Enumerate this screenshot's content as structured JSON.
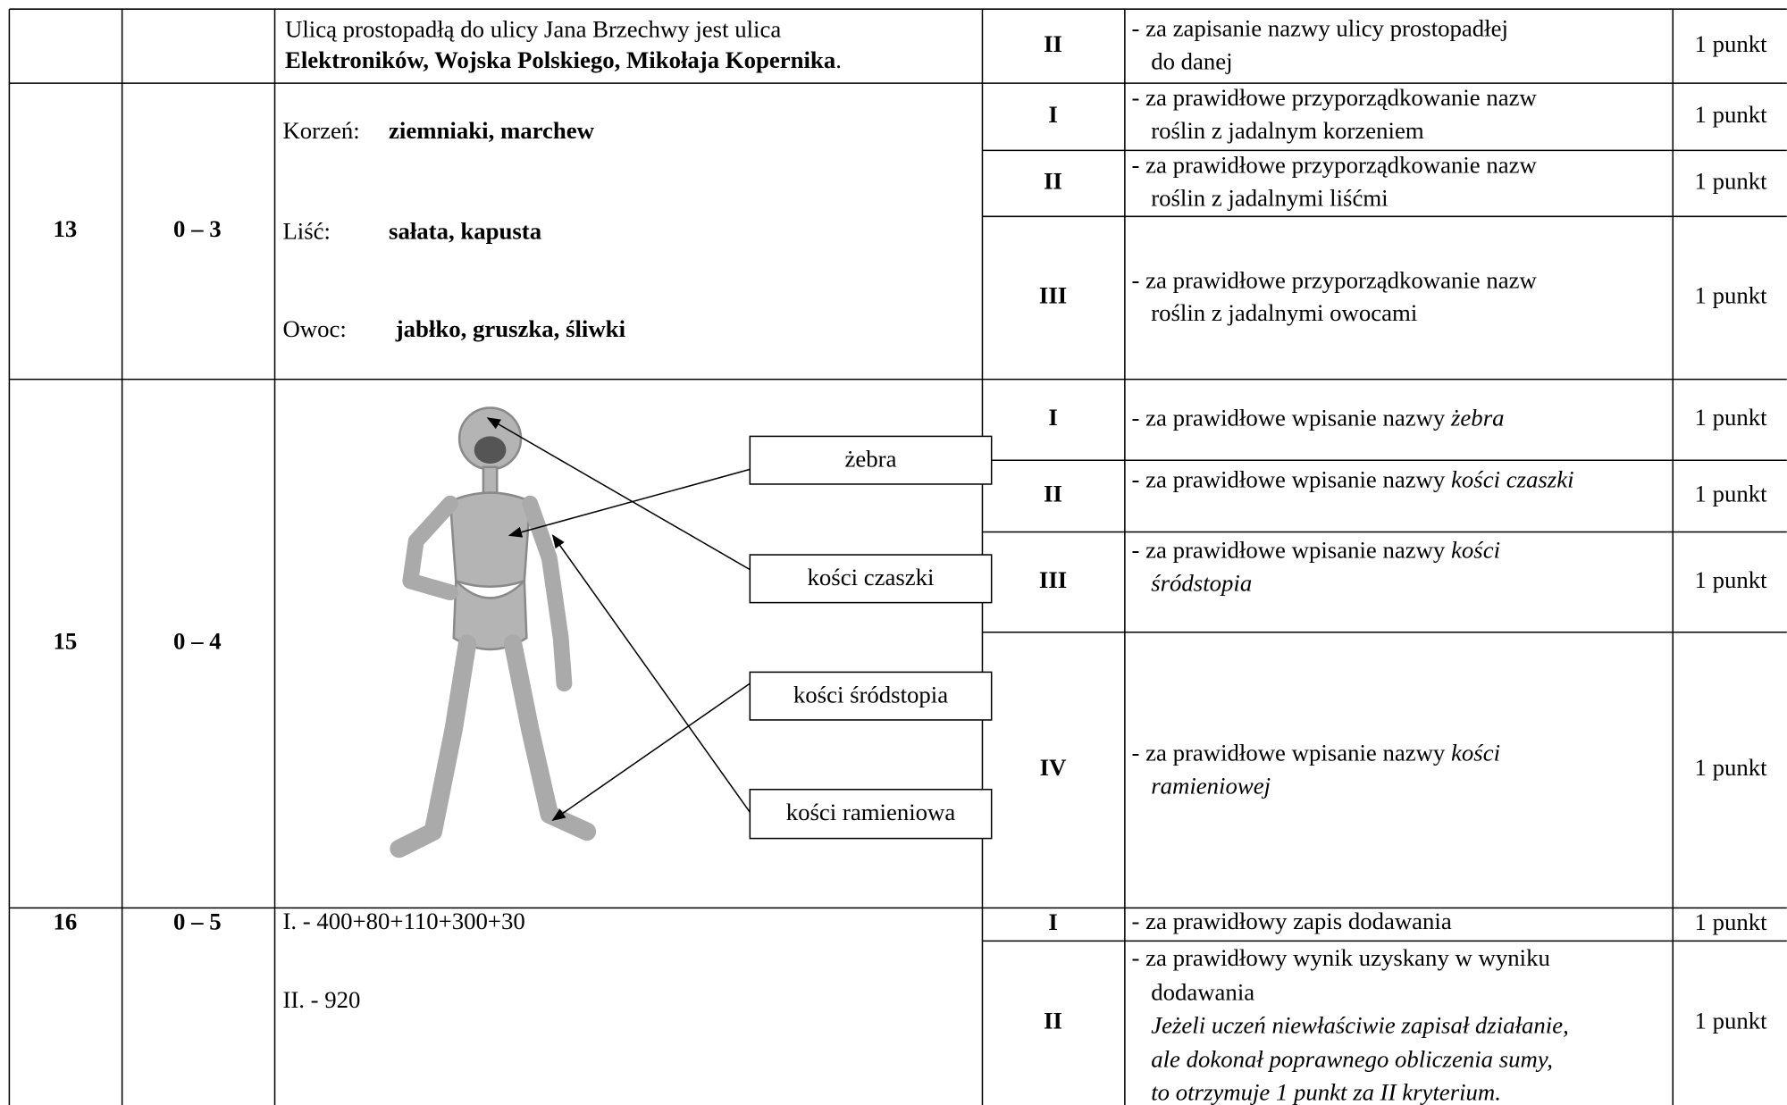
{
  "rows": [
    {
      "answer": [
        [
          {
            "text": "Ulicą prostopadłą do ulicy Jana Brzechwy jest ulica"
          }
        ],
        [
          {
            "text": "Elektroników, Wojska Polskiego, Mikołaja Kopernika",
            "style": "bold"
          },
          {
            "text": "."
          }
        ]
      ],
      "criteria": [
        {
          "level": "II",
          "lines": [
            [
              {
                "text": "- za zapisanie nazwy ulicy prostopadłej"
              }
            ],
            [
              {
                "text": "do danej"
              }
            ]
          ],
          "points": "1 punkt"
        }
      ]
    },
    {
      "task": "13",
      "range": "0 – 3",
      "answer": [
        [
          {
            "text": "Korzeń:"
          },
          {
            "text": "ziemniaki, marchew",
            "style": "bold"
          }
        ],
        [
          {
            "text": "Liść:"
          },
          {
            "text": "sałata, kapusta",
            "style": "bold"
          }
        ],
        [
          {
            "text": "Owoc:"
          },
          {
            "text": "jabłko, gruszka, śliwki",
            "style": "bold"
          }
        ]
      ],
      "criteria": [
        {
          "level": "I",
          "lines": [
            [
              {
                "text": "- za prawidłowe przyporządkowanie nazw"
              }
            ],
            [
              {
                "text": "roślin z jadalnym korzeniem"
              }
            ]
          ],
          "points": "1 punkt"
        },
        {
          "level": "II",
          "lines": [
            [
              {
                "text": "- za prawidłowe przyporządkowanie nazw"
              }
            ],
            [
              {
                "text": "roślin z jadalnymi liśćmi"
              }
            ]
          ],
          "points": "1 punkt"
        },
        {
          "level": "III",
          "lines": [
            [
              {
                "text": "- za prawidłowe przyporządkowanie nazw"
              }
            ],
            [
              {
                "text": "roślin z jadalnymi owocami"
              }
            ]
          ],
          "points": "1 punkt"
        }
      ]
    },
    {
      "task": "15",
      "range": "0 – 4",
      "labels": [
        "żebra",
        "kości czaszki",
        "kości śródstopia",
        "kości ramieniowa"
      ],
      "criteria": [
        {
          "level": "I",
          "lines": [
            [
              {
                "text": "- za prawidłowe wpisanie nazwy "
              },
              {
                "text": "żebra",
                "style": "italic"
              }
            ]
          ],
          "points": "1 punkt"
        },
        {
          "level": "II",
          "lines": [
            [
              {
                "text": "- za prawidłowe wpisanie nazwy "
              },
              {
                "text": "kości czaszki",
                "style": "italic"
              }
            ]
          ],
          "points": "1 punkt"
        },
        {
          "level": "III",
          "lines": [
            [
              {
                "text": "- za prawidłowe wpisanie nazwy "
              },
              {
                "text": "kości",
                "style": "italic"
              }
            ],
            [
              {
                "text": "śródstopia",
                "style": "italic"
              }
            ]
          ],
          "points": "1 punkt"
        },
        {
          "level": "IV",
          "lines": [
            [
              {
                "text": "- za prawidłowe wpisanie nazwy "
              },
              {
                "text": "kości",
                "style": "italic"
              }
            ],
            [
              {
                "text": "ramieniowej",
                "style": "italic"
              }
            ]
          ],
          "points": "1 punkt"
        }
      ]
    },
    {
      "task": "16",
      "range": "0 – 5",
      "answer": [
        [
          {
            "text": "I. - 400+80+110+300+30"
          }
        ],
        [
          {
            "text": "II. - 920"
          }
        ]
      ],
      "criteria": [
        {
          "level": "I",
          "lines": [
            [
              {
                "text": "- za prawidłowy zapis dodawania"
              }
            ]
          ],
          "points": "1 punkt"
        },
        {
          "level": "II",
          "lines": [
            [
              {
                "text": "- za prawidłowy wynik uzyskany w wyniku"
              }
            ],
            [
              {
                "text": "dodawania"
              }
            ],
            [
              {
                "text": "Jeżeli uczeń niewłaściwie zapisał działanie,",
                "style": "italic"
              }
            ],
            [
              {
                "text": "ale dokonał poprawnego obliczenia sumy,",
                "style": "italic"
              }
            ],
            [
              {
                "text": "to otrzymuje 1 punkt za II kryterium.",
                "style": "italic"
              }
            ]
          ],
          "points": "1 punkt"
        }
      ]
    }
  ]
}
